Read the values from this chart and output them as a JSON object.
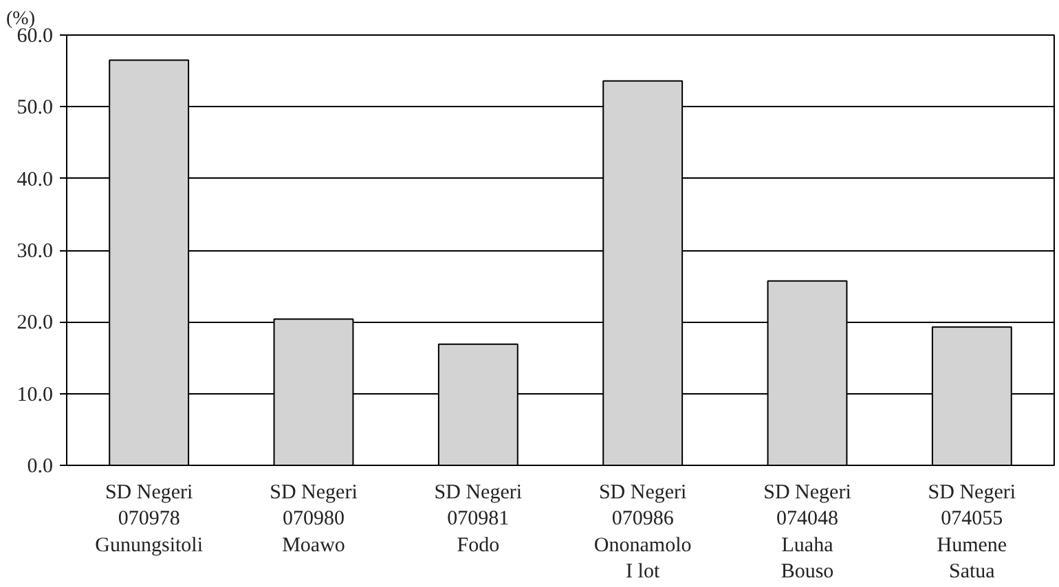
{
  "chart_data": {
    "type": "bar",
    "ylabel": "(%)",
    "categories": [
      "SD Negeri\n070978\nGunungsitoli",
      "SD Negeri\n070980\nMoawo",
      "SD Negeri\n070981\nFodo",
      "SD Negeri\n070986\nOnonamolo\nI lot",
      "SD Negeri\n074048\nLuaha\nBouso",
      "SD Negeri\n074055\nHumene\nSatua"
    ],
    "values": [
      56.5,
      20.4,
      16.9,
      53.6,
      25.7,
      19.3
    ],
    "color": "#d3d3d3",
    "ylim": [
      0,
      60
    ],
    "yticks": [
      {
        "value": 0,
        "label": "0.0"
      },
      {
        "value": 10,
        "label": "10.0"
      },
      {
        "value": 20,
        "label": "20.0"
      },
      {
        "value": 30,
        "label": "30.0"
      },
      {
        "value": 40,
        "label": "40.0"
      },
      {
        "value": 50,
        "label": "50.0"
      },
      {
        "value": 60,
        "label": "60.0"
      }
    ],
    "grid": "y"
  }
}
